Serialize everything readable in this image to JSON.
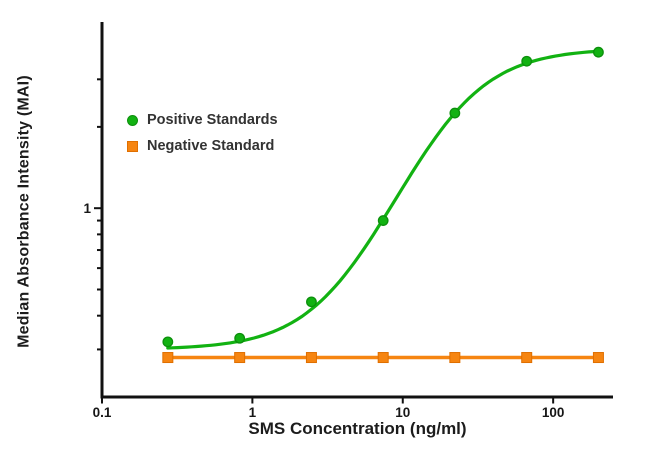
{
  "figure": {
    "background": "#ffffff"
  },
  "chart_data": {
    "type": "line",
    "title": "",
    "xlabel": "SMS Concentration (ng/ml)",
    "ylabel": "Median Absorbance Intensity (MAI)",
    "xscale": "log",
    "yscale": "log",
    "xlim": [
      0.1,
      250
    ],
    "ylim": [
      0.2,
      4.89
    ],
    "grid": false,
    "legend_position": "inside-upper-left",
    "axis_color": "#111111",
    "x_ticks": {
      "values": [
        0.1,
        1,
        10,
        100
      ],
      "labels": [
        "0.1",
        "1",
        "10",
        "100"
      ]
    },
    "y_ticks": {
      "major_values": [
        1
      ],
      "major_labels": [
        "1"
      ],
      "minor_values": [
        0.3,
        0.4,
        0.5,
        0.6,
        0.7,
        0.8,
        0.9,
        2,
        3
      ]
    },
    "x": [
      0.274,
      0.823,
      2.47,
      7.41,
      22.2,
      66.7,
      200
    ],
    "series": [
      {
        "name": "Positive Standards",
        "marker": "circle",
        "color": "#12b212",
        "marker_border": "#0c8f0c",
        "values": [
          0.32,
          0.33,
          0.45,
          0.9,
          2.25,
          3.5,
          3.78
        ],
        "fit_curve": {
          "model": "4PL",
          "bottom": 0.3,
          "top": 3.9,
          "ec50": 20,
          "hill": 1.6
        }
      },
      {
        "name": "Negative Standard",
        "marker": "square",
        "color": "#f68511",
        "marker_border": "#e06f00",
        "values": [
          0.28,
          0.28,
          0.28,
          0.28,
          0.28,
          0.28,
          0.28
        ],
        "fit_curve": {
          "model": "flat"
        }
      }
    ]
  }
}
